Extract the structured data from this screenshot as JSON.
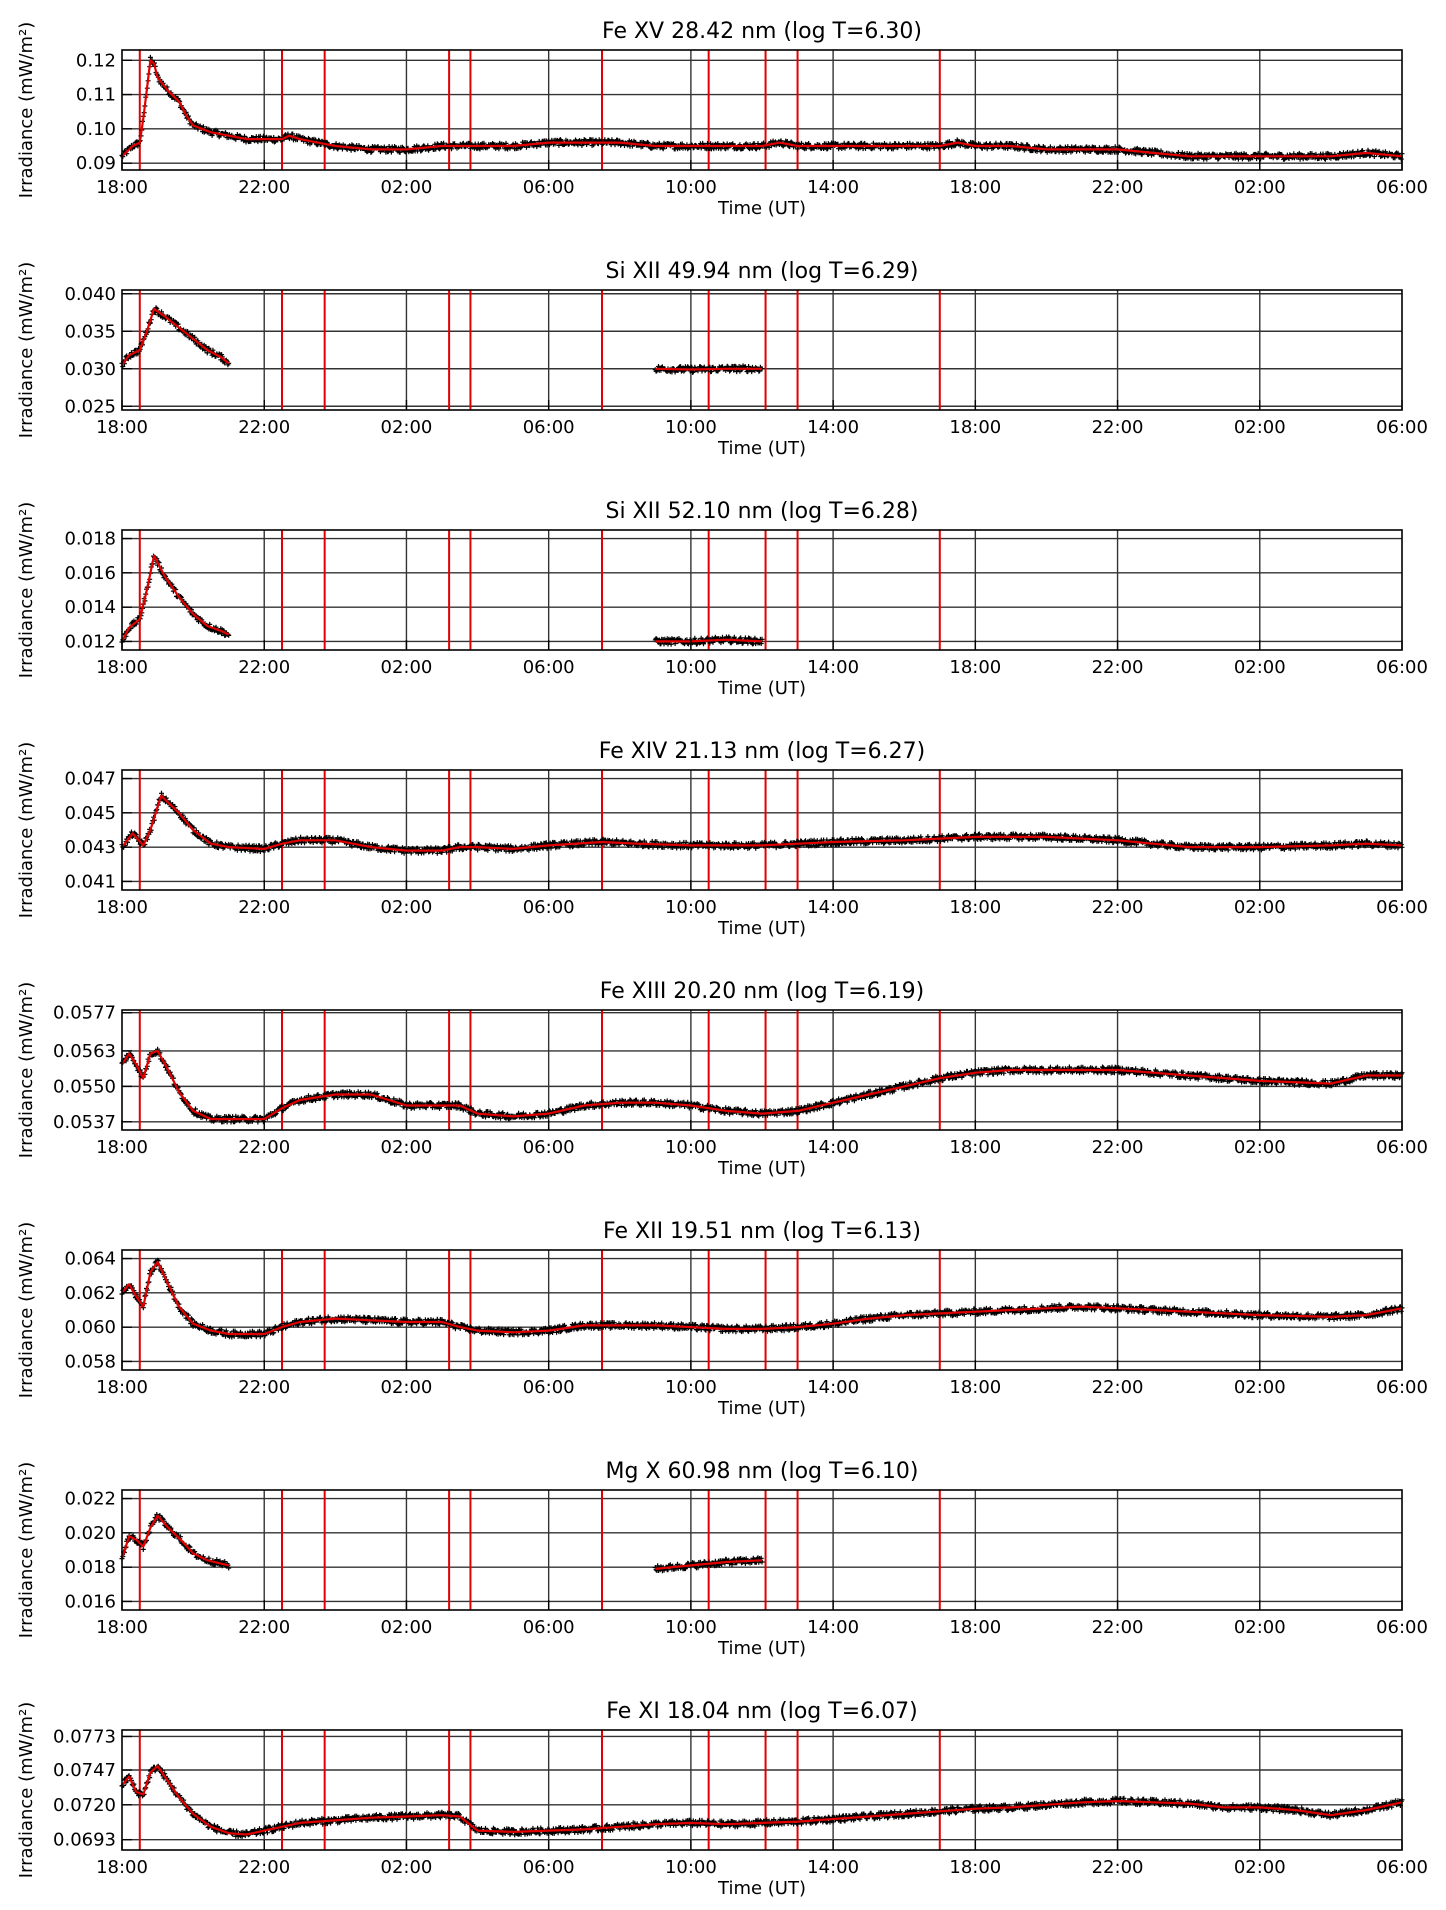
{
  "x_axis": {
    "label": "Time (UT)",
    "ticks": [
      "18:00",
      "22:00",
      "02:00",
      "06:00",
      "10:00",
      "14:00",
      "18:00",
      "22:00",
      "02:00",
      "06:00"
    ],
    "range_hours": [
      0,
      36
    ]
  },
  "ylabel": "Irradiance (mW/m²)",
  "event_lines_hours": [
    0.5,
    4.5,
    5.7,
    9.2,
    9.8,
    13.5,
    16.5,
    18.1,
    19.0,
    23.0
  ],
  "colors": {
    "data": "#000000",
    "fit": "#e00000",
    "event": "#e00000",
    "grid": "#333333"
  },
  "chart_data": [
    {
      "type": "scatter",
      "title": "Fe XV 28.42 nm (log T=6.30)",
      "ylim": [
        0.088,
        0.123
      ],
      "yticks": [
        0.09,
        0.1,
        0.11,
        0.12
      ],
      "ytick_labels": [
        "0.09",
        "0.10",
        "0.11",
        "0.12"
      ],
      "series": [
        {
          "segments": [
            {
              "x": [
                0,
                0.3,
                0.5,
                0.6,
                0.8,
                0.9,
                1.0,
                1.3,
                1.6,
                1.8,
                2.0,
                2.5,
                3.0,
                3.5,
                4.0,
                4.5,
                4.7,
                5.0,
                5.5,
                6.0,
                7.0,
                8.0,
                9.0,
                9.5,
                10.0,
                11.0,
                12.0,
                13.0,
                14.0,
                15.0,
                16.0,
                17.0,
                18.0,
                18.5,
                19.0,
                20.0,
                22.0,
                23.0,
                23.5,
                24.0,
                25.0,
                26.0,
                27.0,
                28.0,
                29.0,
                30.0,
                32.0,
                34.0,
                35.0,
                36.0
              ],
              "y": [
                0.092,
                0.095,
                0.096,
                0.103,
                0.12,
                0.119,
                0.115,
                0.111,
                0.108,
                0.104,
                0.101,
                0.099,
                0.098,
                0.097,
                0.097,
                0.097,
                0.098,
                0.097,
                0.096,
                0.095,
                0.094,
                0.094,
                0.095,
                0.095,
                0.095,
                0.095,
                0.096,
                0.096,
                0.096,
                0.095,
                0.095,
                0.095,
                0.095,
                0.096,
                0.095,
                0.095,
                0.095,
                0.095,
                0.096,
                0.095,
                0.095,
                0.094,
                0.094,
                0.094,
                0.093,
                0.092,
                0.092,
                0.092,
                0.093,
                0.092
              ]
            }
          ]
        }
      ]
    },
    {
      "type": "scatter",
      "title": "Si XII 49.94 nm (log T=6.29)",
      "ylim": [
        0.0245,
        0.0405
      ],
      "yticks": [
        0.025,
        0.03,
        0.035,
        0.04
      ],
      "ytick_labels": [
        "0.025",
        "0.030",
        "0.035",
        "0.040"
      ],
      "series": [
        {
          "segments": [
            {
              "x": [
                0,
                0.2,
                0.5,
                0.7,
                0.9,
                1.2,
                1.6,
                2.0,
                2.4,
                2.8,
                3.0
              ],
              "y": [
                0.0305,
                0.0318,
                0.0325,
                0.035,
                0.038,
                0.037,
                0.0355,
                0.034,
                0.0325,
                0.0315,
                0.0307
              ]
            },
            {
              "x": [
                15.0,
                16.0,
                17.0,
                18.0
              ],
              "y": [
                0.03,
                0.0299,
                0.03,
                0.03
              ]
            }
          ]
        }
      ]
    },
    {
      "type": "scatter",
      "title": "Si XII 52.10 nm (log T=6.28)",
      "ylim": [
        0.0115,
        0.0185
      ],
      "yticks": [
        0.012,
        0.014,
        0.016,
        0.018
      ],
      "ytick_labels": [
        "0.012",
        "0.014",
        "0.016",
        "0.018"
      ],
      "series": [
        {
          "segments": [
            {
              "x": [
                0,
                0.2,
                0.5,
                0.7,
                0.9,
                1.2,
                1.6,
                2.0,
                2.4,
                2.8,
                3.0
              ],
              "y": [
                0.012,
                0.0128,
                0.0133,
                0.015,
                0.017,
                0.0158,
                0.0146,
                0.0136,
                0.0129,
                0.0126,
                0.0124
              ]
            },
            {
              "x": [
                15.0,
                16.0,
                17.0,
                18.0
              ],
              "y": [
                0.012,
                0.012,
                0.0121,
                0.012
              ]
            }
          ]
        }
      ]
    },
    {
      "type": "scatter",
      "title": "Fe XIV 21.13 nm (log T=6.27)",
      "ylim": [
        0.0405,
        0.0475
      ],
      "yticks": [
        0.041,
        0.043,
        0.045,
        0.047
      ],
      "ytick_labels": [
        "0.041",
        "0.043",
        "0.045",
        "0.047"
      ],
      "series": [
        {
          "segments": [
            {
              "x": [
                0,
                0.3,
                0.6,
                0.8,
                1.1,
                1.6,
                2.0,
                2.5,
                3.0,
                4.0,
                4.5,
                5.0,
                6.0,
                7.0,
                8.0,
                9.0,
                9.5,
                10.0,
                11.0,
                12.0,
                13.5,
                14.5,
                16.0,
                17.0,
                18.0,
                19.0,
                20.0,
                22.0,
                23.0,
                24.0,
                25.0,
                26.0,
                28.0,
                29.0,
                30.0,
                32.0,
                34.0,
                35.0,
                36.0
              ],
              "y": [
                0.043,
                0.0438,
                0.0431,
                0.044,
                0.046,
                0.045,
                0.044,
                0.0432,
                0.043,
                0.0429,
                0.0432,
                0.0434,
                0.0434,
                0.043,
                0.0428,
                0.0428,
                0.043,
                0.043,
                0.0429,
                0.0431,
                0.0433,
                0.0432,
                0.0431,
                0.0431,
                0.0431,
                0.0432,
                0.0433,
                0.0434,
                0.0435,
                0.0436,
                0.0436,
                0.0436,
                0.0434,
                0.0432,
                0.043,
                0.043,
                0.0431,
                0.0432,
                0.0431
              ]
            }
          ]
        }
      ]
    },
    {
      "type": "scatter",
      "title": "Fe XIII 20.20 nm (log T=6.19)",
      "ylim": [
        0.0534,
        0.0578
      ],
      "yticks": [
        0.0537,
        0.055,
        0.0563,
        0.0577
      ],
      "ytick_labels": [
        "0.0537",
        "0.0550",
        "0.0563",
        "0.0577"
      ],
      "series": [
        {
          "segments": [
            {
              "x": [
                0,
                0.2,
                0.4,
                0.6,
                0.8,
                1.0,
                1.3,
                1.6,
                2.0,
                2.5,
                3.0,
                4.0,
                4.5,
                5.0,
                6.0,
                7.0,
                8.0,
                9.0,
                9.5,
                10.0,
                11.0,
                12.0,
                13.0,
                14.0,
                15.0,
                16.0,
                17.0,
                18.0,
                19.0,
                20.0,
                21.0,
                22.0,
                23.0,
                24.0,
                25.0,
                26.0,
                27.0,
                28.0,
                29.0,
                30.0,
                32.0,
                34.0,
                35.0,
                36.0
              ],
              "y": [
                0.0558,
                0.0562,
                0.0558,
                0.0553,
                0.0562,
                0.0563,
                0.0556,
                0.0548,
                0.0541,
                0.0538,
                0.0538,
                0.0538,
                0.0542,
                0.0545,
                0.0547,
                0.0547,
                0.0543,
                0.0543,
                0.0543,
                0.054,
                0.0539,
                0.054,
                0.0543,
                0.0544,
                0.0544,
                0.0543,
                0.0541,
                0.054,
                0.0541,
                0.0544,
                0.0547,
                0.055,
                0.0553,
                0.0555,
                0.0556,
                0.0556,
                0.0556,
                0.0556,
                0.0555,
                0.0554,
                0.0552,
                0.0551,
                0.0554,
                0.0554
              ]
            }
          ]
        }
      ]
    },
    {
      "type": "scatter",
      "title": "Fe XII 19.51 nm (log T=6.13)",
      "ylim": [
        0.0575,
        0.0645
      ],
      "yticks": [
        0.058,
        0.06,
        0.062,
        0.064
      ],
      "ytick_labels": [
        "0.058",
        "0.060",
        "0.062",
        "0.064"
      ],
      "series": [
        {
          "segments": [
            {
              "x": [
                0,
                0.2,
                0.4,
                0.6,
                0.8,
                1.0,
                1.3,
                1.6,
                2.0,
                2.5,
                3.0,
                4.0,
                4.5,
                5.0,
                6.0,
                7.0,
                8.0,
                9.0,
                9.5,
                10.0,
                11.0,
                12.0,
                13.0,
                14.0,
                15.0,
                16.0,
                17.0,
                18.0,
                19.0,
                20.0,
                21.0,
                22.0,
                23.0,
                24.0,
                25.0,
                26.0,
                27.0,
                28.0,
                30.0,
                32.0,
                34.0,
                35.0,
                36.0
              ],
              "y": [
                0.062,
                0.0625,
                0.0618,
                0.0612,
                0.0632,
                0.0638,
                0.0625,
                0.0612,
                0.0602,
                0.0598,
                0.0596,
                0.0596,
                0.06,
                0.0603,
                0.0605,
                0.0604,
                0.0603,
                0.0603,
                0.06,
                0.0598,
                0.0597,
                0.0598,
                0.0601,
                0.0601,
                0.0601,
                0.06,
                0.0599,
                0.0599,
                0.06,
                0.0602,
                0.0605,
                0.0607,
                0.0608,
                0.0609,
                0.061,
                0.0611,
                0.0612,
                0.0611,
                0.0609,
                0.0607,
                0.0606,
                0.0607,
                0.0611
              ]
            }
          ]
        }
      ]
    },
    {
      "type": "scatter",
      "title": "Mg X 60.98 nm (log T=6.10)",
      "ylim": [
        0.0155,
        0.0225
      ],
      "yticks": [
        0.016,
        0.018,
        0.02,
        0.022
      ],
      "ytick_labels": [
        "0.016",
        "0.018",
        "0.020",
        "0.022"
      ],
      "series": [
        {
          "segments": [
            {
              "x": [
                0,
                0.2,
                0.4,
                0.6,
                0.8,
                1.0,
                1.3,
                1.7,
                2.0,
                2.4,
                2.8,
                3.0
              ],
              "y": [
                0.0185,
                0.0198,
                0.0196,
                0.0192,
                0.0203,
                0.021,
                0.0203,
                0.0195,
                0.0188,
                0.0184,
                0.0182,
                0.0181
              ]
            },
            {
              "x": [
                15.0,
                16.0,
                17.0,
                18.0
              ],
              "y": [
                0.0179,
                0.0181,
                0.0183,
                0.0184
              ]
            }
          ]
        }
      ]
    },
    {
      "type": "scatter",
      "title": "Fe XI 18.04 nm (log T=6.07)",
      "ylim": [
        0.0685,
        0.0778
      ],
      "yticks": [
        0.0693,
        0.072,
        0.0747,
        0.0773
      ],
      "ytick_labels": [
        "0.0693",
        "0.0720",
        "0.0747",
        "0.0773"
      ],
      "series": [
        {
          "segments": [
            {
              "x": [
                0,
                0.2,
                0.4,
                0.6,
                0.8,
                1.0,
                1.3,
                1.6,
                2.0,
                2.5,
                3.0,
                3.5,
                4.0,
                4.5,
                5.0,
                6.0,
                7.0,
                8.0,
                9.0,
                9.5,
                10.0,
                11.0,
                12.0,
                13.0,
                14.0,
                15.0,
                16.0,
                17.0,
                18.0,
                19.0,
                20.0,
                21.0,
                22.0,
                23.0,
                24.0,
                25.0,
                26.0,
                27.0,
                28.0,
                29.0,
                30.0,
                31.0,
                32.0,
                33.0,
                34.0,
                35.0,
                36.0
              ],
              "y": [
                0.0735,
                0.0742,
                0.073,
                0.0728,
                0.0745,
                0.075,
                0.0738,
                0.0726,
                0.0713,
                0.0703,
                0.0698,
                0.0697,
                0.07,
                0.0703,
                0.0706,
                0.0708,
                0.071,
                0.0711,
                0.0712,
                0.0711,
                0.07,
                0.0699,
                0.07,
                0.0701,
                0.0703,
                0.0705,
                0.0706,
                0.0705,
                0.0706,
                0.0707,
                0.0709,
                0.0711,
                0.0713,
                0.0715,
                0.0717,
                0.0718,
                0.072,
                0.0722,
                0.0723,
                0.0722,
                0.0721,
                0.0718,
                0.0718,
                0.0716,
                0.0712,
                0.0716,
                0.0722
              ]
            }
          ]
        }
      ]
    }
  ]
}
